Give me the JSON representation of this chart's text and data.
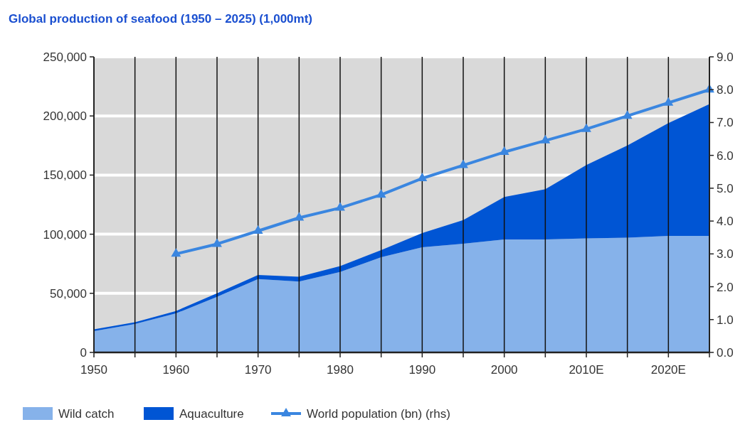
{
  "chart_data": {
    "type": "area",
    "title": "Global production of seafood (1950 – 2025) (1,000mt)",
    "stacked": true,
    "x": [
      1950,
      1955,
      1960,
      1965,
      1970,
      1975,
      1980,
      1985,
      1990,
      1995,
      2000,
      2005,
      2010,
      2015,
      2020,
      2025
    ],
    "series": [
      {
        "name": "Wild catch",
        "color": "#86b2ea",
        "values": [
          18000,
          24000,
          33000,
          47000,
          62000,
          60000,
          68000,
          80500,
          89000,
          92000,
          95500,
          95500,
          96500,
          97000,
          98500,
          98500
        ]
      },
      {
        "name": "Aquaculture",
        "color": "#0055d4",
        "values": [
          1500,
          1500,
          2000,
          3000,
          3500,
          4000,
          5000,
          6000,
          12000,
          20000,
          36000,
          42500,
          62000,
          78000,
          95500,
          111500
        ]
      },
      {
        "name": "World population (bn) (rhs)",
        "type": "line",
        "axis": "y2",
        "color": "#3a86e0",
        "marker": "triangle",
        "x": [
          1960,
          1965,
          1970,
          1975,
          1980,
          1985,
          1990,
          1995,
          2000,
          2005,
          2010,
          2015,
          2020,
          2025
        ],
        "values": [
          3.0,
          3.3,
          3.7,
          4.1,
          4.4,
          4.8,
          5.3,
          5.7,
          6.1,
          6.45,
          6.8,
          7.2,
          7.6,
          8.0
        ]
      }
    ],
    "xlim": [
      1950,
      2025
    ],
    "xticks": [
      1950,
      {
        "value": 1955,
        "label": null
      },
      1960,
      {
        "value": 1965,
        "label": null
      },
      1970,
      {
        "value": 1975,
        "label": null
      },
      1980,
      {
        "value": 1985,
        "label": null
      },
      1990,
      {
        "value": 1995,
        "label": null
      },
      2000,
      {
        "value": 2005,
        "label": null
      },
      {
        "value": 2010,
        "label": "2010E"
      },
      {
        "value": 2015,
        "label": null
      },
      {
        "value": 2020,
        "label": "2020E"
      },
      {
        "value": 2025,
        "label": null
      }
    ],
    "ylim": [
      0,
      250000
    ],
    "yticks": [
      0,
      {
        "value": 50000,
        "label": "50,000"
      },
      {
        "value": 100000,
        "label": "100,000"
      },
      {
        "value": 150000,
        "label": "150,000"
      },
      {
        "value": 200000,
        "label": "200,000"
      },
      {
        "value": 250000,
        "label": "250,000"
      }
    ],
    "y2lim": [
      0,
      9
    ],
    "y2ticks": [
      {
        "value": 0,
        "label": "0.0"
      },
      {
        "value": 1,
        "label": "1.0"
      },
      {
        "value": 2,
        "label": "2.0"
      },
      {
        "value": 3,
        "label": "3.0"
      },
      {
        "value": 4,
        "label": "4.0"
      },
      {
        "value": 5,
        "label": "5.0"
      },
      {
        "value": 6,
        "label": "6.0"
      },
      {
        "value": 7,
        "label": "7.0"
      },
      {
        "value": 8,
        "label": "8.0"
      },
      {
        "value": 9,
        "label": "9.0"
      }
    ],
    "grid": true,
    "legend": "bottom"
  }
}
